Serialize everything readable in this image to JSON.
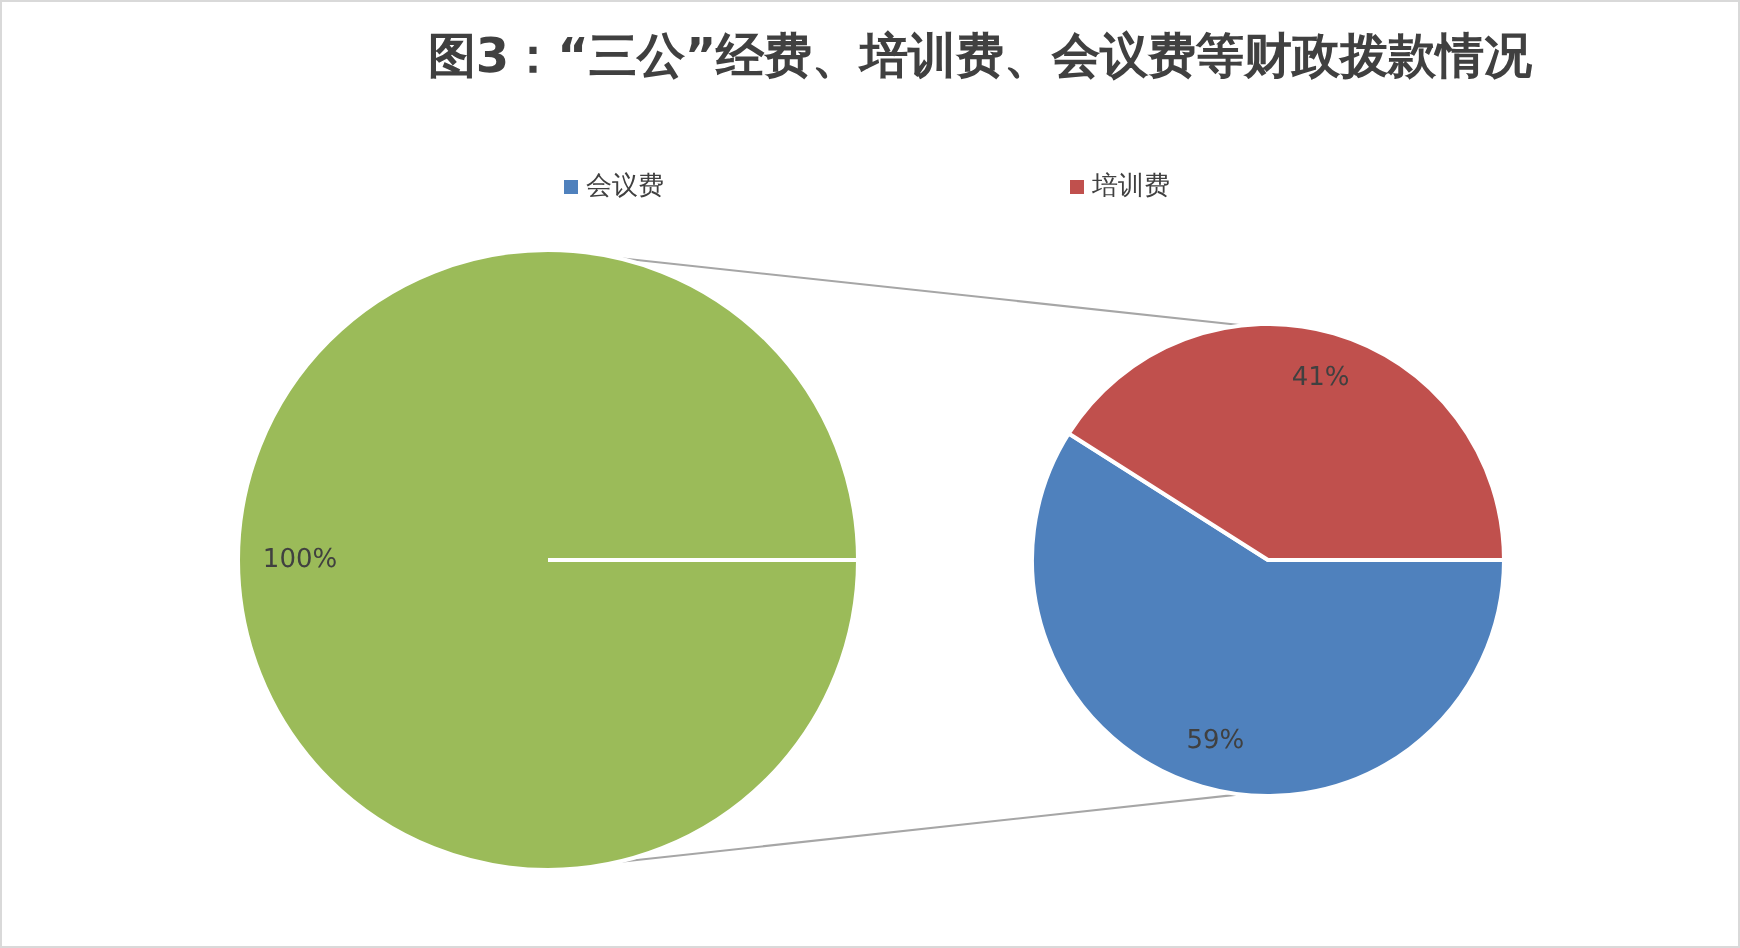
{
  "chart_data": [
    {
      "type": "pie",
      "title": "图3：“三公”经费、培训费、会议费等财政拨款情况",
      "categories": [
        null
      ],
      "values": [
        100
      ],
      "colors": [
        "#9bbb59"
      ],
      "value_labels": [
        "100%"
      ],
      "legend": false
    },
    {
      "type": "pie",
      "categories": [
        "会议费",
        "培训费"
      ],
      "values": [
        59,
        41
      ],
      "colors": [
        "#4f81bd",
        "#c0504d"
      ],
      "value_labels": [
        "59%",
        "41%"
      ],
      "legend": "top"
    }
  ]
}
